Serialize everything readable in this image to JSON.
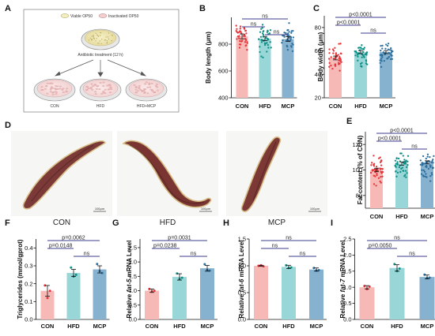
{
  "figure": {
    "panel_labels": [
      "A",
      "B",
      "C",
      "D",
      "E",
      "F",
      "G",
      "H",
      "I"
    ],
    "scheme": {
      "legend": [
        "Viable OP50",
        "Inactivated OP50"
      ],
      "treatment": "Antibiotic treatment (12 h)",
      "dishes": [
        "CON",
        "HFD",
        "HFD+MCP"
      ]
    },
    "micrographs": {
      "labels": [
        "CON",
        "HFD",
        "MCP"
      ],
      "scale": "100μm"
    },
    "colors": {
      "CON": "#f7b9b6",
      "HFD": "#99d6d8",
      "MCP": "#86b2cf",
      "CON_pt": "#e4353a",
      "HFD_pt": "#0f8f86",
      "MCP_pt": "#2c6f9e",
      "sig_line": "#3b3b8e"
    }
  },
  "chart_data": [
    {
      "panel": "B",
      "type": "bar",
      "categories": [
        "CON",
        "HFD",
        "MCP"
      ],
      "values": [
        858,
        842,
        838
      ],
      "errors": [
        18,
        16,
        17
      ],
      "ylabel": "Body length (μm)",
      "ylim": [
        400,
        1000
      ],
      "yticks": [
        400,
        600,
        800
      ],
      "points": 40,
      "spread": [
        700,
        1000
      ],
      "comparisons": [
        {
          "from": 0,
          "to": 2,
          "label": "ns"
        },
        {
          "from": 0,
          "to": 1,
          "label": "ns"
        },
        {
          "from": 1,
          "to": 2,
          "label": "ns"
        }
      ]
    },
    {
      "panel": "C",
      "type": "bar",
      "categories": [
        "CON",
        "HFD",
        "MCP"
      ],
      "values": [
        54,
        59,
        59
      ],
      "errors": [
        1.6,
        1.3,
        1.3
      ],
      "ylabel": "Body width (μm)",
      "ylim": [
        20,
        90
      ],
      "yticks": [
        20,
        40,
        60,
        80
      ],
      "points": 40,
      "spread": [
        40,
        70
      ],
      "comparisons": [
        {
          "from": 0,
          "to": 2,
          "label": "p<0.0001"
        },
        {
          "from": 0,
          "to": 1,
          "label": "p<0.0001"
        },
        {
          "from": 1,
          "to": 2,
          "label": "ns"
        }
      ]
    },
    {
      "panel": "E",
      "type": "bar",
      "categories": [
        "CON",
        "HFD",
        "MCP"
      ],
      "values": [
        100,
        105,
        106
      ],
      "errors": [
        1.4,
        1.3,
        1.2
      ],
      "ylabel": "Fat content (% of CON)",
      "ylim": [
        70,
        130
      ],
      "yticks": [
        80,
        100,
        120
      ],
      "points": 45,
      "spread": [
        84,
        113
      ],
      "comparisons": [
        {
          "from": 0,
          "to": 2,
          "label": "p<0.0001"
        },
        {
          "from": 0,
          "to": 1,
          "label": "p<0.0001"
        },
        {
          "from": 1,
          "to": 2,
          "label": "ns"
        }
      ]
    },
    {
      "panel": "F",
      "type": "bar",
      "categories": [
        "CON",
        "HFD",
        "MCP"
      ],
      "values": [
        0.16,
        0.26,
        0.28
      ],
      "errors": [
        0.03,
        0.02,
        0.02
      ],
      "replicates": [
        [
          0.19,
          0.12,
          0.16
        ],
        [
          0.29,
          0.24,
          0.25
        ],
        [
          0.31,
          0.27,
          0.26
        ]
      ],
      "ylabel": "Triglycerides (mmol/gprot)",
      "ylim": [
        0,
        0.45
      ],
      "yticks": [
        0.0,
        0.1,
        0.2,
        0.3,
        0.4
      ],
      "comparisons": [
        {
          "from": 0,
          "to": 2,
          "label": "p=0.0062"
        },
        {
          "from": 0,
          "to": 1,
          "label": "p=0.0148"
        },
        {
          "from": 1,
          "to": 2,
          "label": "ns"
        }
      ]
    },
    {
      "panel": "G",
      "type": "bar",
      "categories": [
        "CON",
        "HFD",
        "MCP"
      ],
      "values": [
        1.0,
        1.48,
        1.78
      ],
      "errors": [
        0.06,
        0.11,
        0.1
      ],
      "replicates": [
        [
          1.06,
          0.97,
          1.0
        ],
        [
          1.6,
          1.4,
          1.45
        ],
        [
          1.92,
          1.72,
          1.7
        ]
      ],
      "ylabel": "Relative fat-5 mRNA Level",
      "ylabel_pre": "Relative ",
      "ylabel_gene": "fat-5",
      "ylabel_post": " mRNA Level",
      "ylim": [
        0,
        2.8
      ],
      "yticks": [
        0.0,
        0.5,
        1.0,
        1.5,
        2.0,
        2.5
      ],
      "comparisons": [
        {
          "from": 0,
          "to": 2,
          "label": "p=0.0031"
        },
        {
          "from": 0,
          "to": 1,
          "label": "p=0.0238"
        },
        {
          "from": 1,
          "to": 2,
          "label": "ns"
        }
      ]
    },
    {
      "panel": "H",
      "type": "bar",
      "categories": [
        "CON",
        "HFD",
        "MCP"
      ],
      "values": [
        1.0,
        0.98,
        0.93
      ],
      "errors": [
        0.01,
        0.03,
        0.03
      ],
      "replicates": [
        [
          1.0,
          1.01,
          0.99
        ],
        [
          1.01,
          0.96,
          0.97
        ],
        [
          0.96,
          0.91,
          0.92
        ]
      ],
      "ylabel": "Relative fat-6 mRNA Level",
      "ylabel_pre": "Relative ",
      "ylabel_gene": "fat-6",
      "ylabel_post": " mRNA Level",
      "ylim": [
        0,
        1.5
      ],
      "yticks": [
        0.0,
        0.5,
        1.0,
        1.5
      ],
      "comparisons": [
        {
          "from": 0,
          "to": 2,
          "label": "ns"
        },
        {
          "from": 0,
          "to": 1,
          "label": "ns"
        },
        {
          "from": 1,
          "to": 2,
          "label": "ns"
        }
      ]
    },
    {
      "panel": "I",
      "type": "bar",
      "categories": [
        "CON",
        "HFD",
        "MCP"
      ],
      "values": [
        1.0,
        1.6,
        1.32
      ],
      "errors": [
        0.05,
        0.1,
        0.06
      ],
      "replicates": [
        [
          1.04,
          0.94,
          1.02
        ],
        [
          1.72,
          1.5,
          1.58
        ],
        [
          1.39,
          1.28,
          1.3
        ]
      ],
      "ylabel": "Relative fat-7 mRNA Level",
      "ylabel_pre": "Relative ",
      "ylabel_gene": "fat-7",
      "ylabel_post": " mRNA Level",
      "ylim": [
        0,
        2.5
      ],
      "yticks": [
        0.0,
        0.5,
        1.0,
        1.5,
        2.0,
        2.5
      ],
      "comparisons": [
        {
          "from": 0,
          "to": 2,
          "label": "ns"
        },
        {
          "from": 0,
          "to": 1,
          "label": "p=0.0050"
        },
        {
          "from": 1,
          "to": 2,
          "label": "ns"
        }
      ]
    }
  ]
}
